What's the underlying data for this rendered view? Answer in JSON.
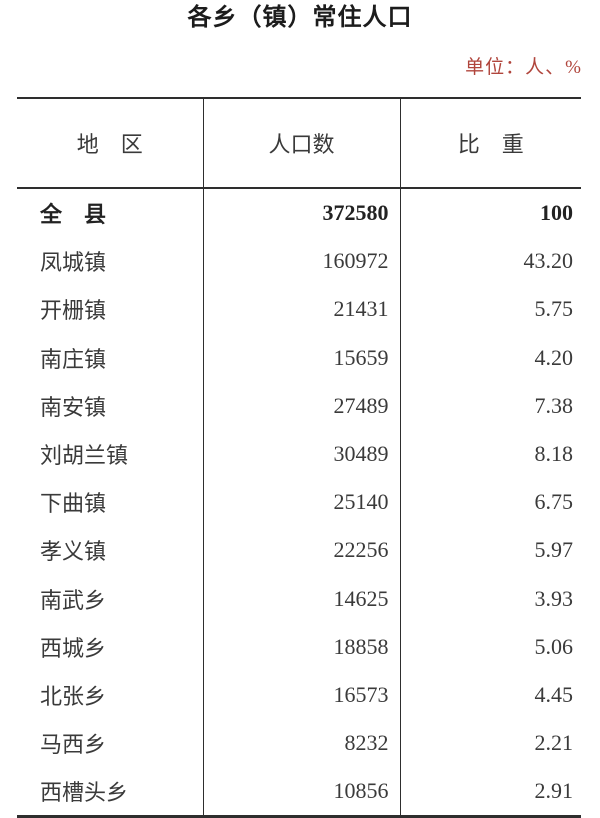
{
  "title": "各乡（镇）常住人口",
  "unit_note": "单位：人、%",
  "colors": {
    "accent_red": "#b0453c",
    "text": "#3a3a3a",
    "border": "#2e2e2e",
    "background": "#ffffff"
  },
  "table": {
    "headers": [
      "地　区",
      "人口数",
      "比　重"
    ],
    "rows": [
      {
        "region": "全　县",
        "population": "372580",
        "share": "100",
        "bold": true
      },
      {
        "region": "凤城镇",
        "population": "160972",
        "share": "43.20",
        "bold": false
      },
      {
        "region": "开栅镇",
        "population": "21431",
        "share": "5.75",
        "bold": false
      },
      {
        "region": "南庄镇",
        "population": "15659",
        "share": "4.20",
        "bold": false
      },
      {
        "region": "南安镇",
        "population": "27489",
        "share": "7.38",
        "bold": false
      },
      {
        "region": "刘胡兰镇",
        "population": "30489",
        "share": "8.18",
        "bold": false
      },
      {
        "region": "下曲镇",
        "population": "25140",
        "share": "6.75",
        "bold": false
      },
      {
        "region": "孝义镇",
        "population": "22256",
        "share": "5.97",
        "bold": false
      },
      {
        "region": "南武乡",
        "population": "14625",
        "share": "3.93",
        "bold": false
      },
      {
        "region": "西城乡",
        "population": "18858",
        "share": "5.06",
        "bold": false
      },
      {
        "region": "北张乡",
        "population": "16573",
        "share": "4.45",
        "bold": false
      },
      {
        "region": "马西乡",
        "population": "8232",
        "share": "2.21",
        "bold": false
      },
      {
        "region": "西槽头乡",
        "population": "10856",
        "share": "2.91",
        "bold": false
      }
    ]
  }
}
